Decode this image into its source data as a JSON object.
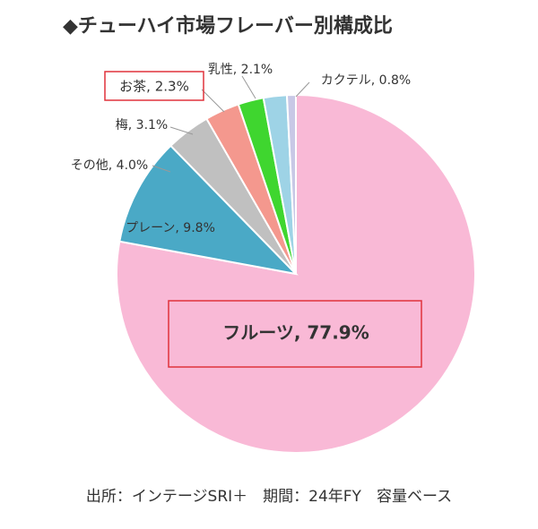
{
  "chart_data": {
    "type": "pie",
    "title": "◆チューハイ市場フレーバー別構成比",
    "values": [
      77.9,
      9.8,
      4.0,
      3.1,
      2.3,
      2.1,
      0.8
    ],
    "value_labels": [
      "フルーツ, 77.9%",
      "プレーン, 9.8%",
      "その他, 4.0%",
      "梅, 3.1%",
      "お茶, 2.3%",
      "乳性, 2.1%",
      "カクテル, 0.8%"
    ],
    "colors": [
      "#f9b9d6",
      "#4aa9c6",
      "#c0c0c0",
      "#f4988e",
      "#3fd62f",
      "#9ed3e6",
      "#c8c8e6"
    ],
    "source": "出所：インテージSRI＋　期間：24年FY　容量ベース"
  }
}
